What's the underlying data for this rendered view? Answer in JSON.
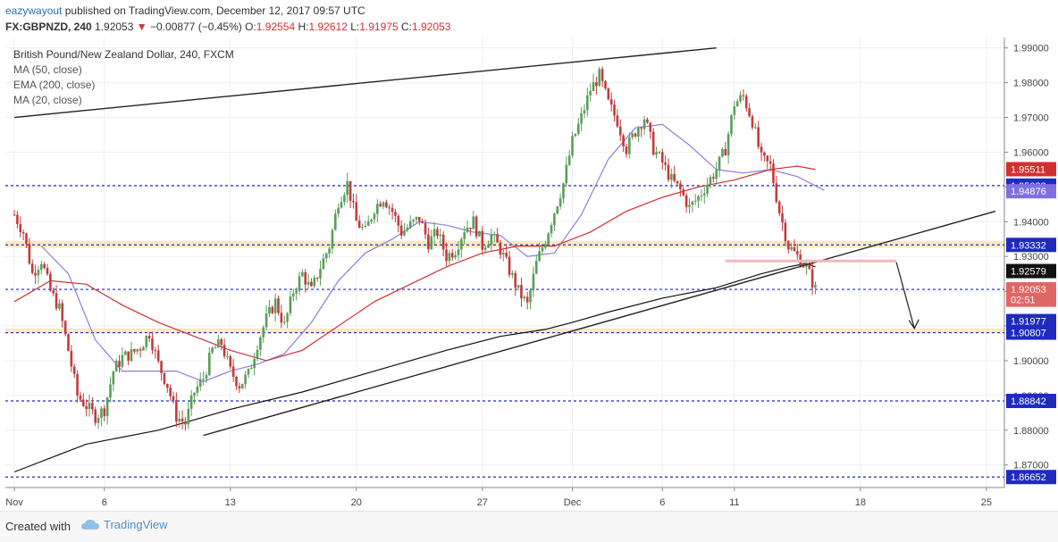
{
  "header": {
    "author": "eazywayout",
    "published": "published on TradingView.com, December 12, 2017 09:57 UTC",
    "symbol": "FX:GBPNZD, 240",
    "last": "1.92053",
    "change": "−0.00877 (−0.45%)",
    "o_label": "O:",
    "o_value": "1.92554",
    "h_label": "H:",
    "h_value": "1.92612",
    "l_label": "L:",
    "l_value": "1.91975",
    "c_label": "C:",
    "c_value": "1.92053"
  },
  "legend": {
    "title": "British Pound/New Zealand Dollar, 240, FXCM",
    "items": [
      "MA (50, close)",
      "EMA (200, close)",
      "MA (20, close)"
    ]
  },
  "footer": {
    "created_with": "Created with",
    "brand": "TradingView"
  },
  "colors": {
    "up": "#5a9e5a",
    "down": "#c23b3b",
    "ma20": "#8b7fe0",
    "ema200": "#d42f2f",
    "ma50": "#111111",
    "level_line": "#1f2bbd",
    "zone": "#f6e3b6",
    "resistance": "#f2b8b8"
  },
  "chart_data": {
    "type": "line",
    "title": "British Pound/New Zealand Dollar, 240, FXCM",
    "x_ticks": [
      "Nov",
      "6",
      "13",
      "20",
      "27",
      "Dec",
      "6",
      "11",
      "18",
      "25"
    ],
    "y_ticks": [
      1.87,
      1.88,
      1.89,
      1.9,
      1.91,
      1.92,
      1.93,
      1.94,
      1.95,
      1.96,
      1.97,
      1.98,
      1.99
    ],
    "y_tick_labels": [
      "1.87000",
      "1.88000",
      "1.89000",
      "1.90000",
      "1.91000",
      "1.92000",
      "1.93000",
      "1.94000",
      "1.95000",
      "1.96000",
      "1.97000",
      "1.98000",
      "1.99000"
    ],
    "ylim": [
      1.8635,
      1.993
    ],
    "x_range_days": [
      -0.5,
      55
    ],
    "price_path": [
      [
        0.0,
        1.942
      ],
      [
        0.5,
        1.937
      ],
      [
        1.0,
        1.925
      ],
      [
        1.5,
        1.929
      ],
      [
        2.0,
        1.92
      ],
      [
        2.5,
        1.915
      ],
      [
        3.0,
        1.903
      ],
      [
        3.5,
        1.89
      ],
      [
        4.0,
        1.887
      ],
      [
        4.5,
        1.884
      ],
      [
        5.0,
        1.886
      ],
      [
        5.5,
        1.897
      ],
      [
        6.0,
        1.901
      ],
      [
        6.5,
        1.902
      ],
      [
        7.0,
        1.904
      ],
      [
        7.5,
        1.908
      ],
      [
        8.0,
        1.899
      ],
      [
        8.5,
        1.893
      ],
      [
        9.0,
        1.884
      ],
      [
        9.5,
        1.882
      ],
      [
        10.0,
        1.891
      ],
      [
        10.5,
        1.895
      ],
      [
        11.0,
        1.903
      ],
      [
        11.5,
        1.905
      ],
      [
        12.0,
        1.897
      ],
      [
        12.5,
        1.893
      ],
      [
        13.0,
        1.896
      ],
      [
        13.5,
        1.905
      ],
      [
        14.0,
        1.912
      ],
      [
        14.5,
        1.917
      ],
      [
        15.0,
        1.91
      ],
      [
        15.5,
        1.92
      ],
      [
        16.0,
        1.925
      ],
      [
        16.5,
        1.92
      ],
      [
        17.0,
        1.927
      ],
      [
        17.5,
        1.933
      ],
      [
        18.0,
        1.946
      ],
      [
        18.5,
        1.951
      ],
      [
        19.0,
        1.94
      ],
      [
        19.5,
        1.937
      ],
      [
        20.0,
        1.944
      ],
      [
        20.5,
        1.947
      ],
      [
        21.0,
        1.943
      ],
      [
        21.5,
        1.937
      ],
      [
        22.0,
        1.939
      ],
      [
        22.5,
        1.941
      ],
      [
        23.0,
        1.934
      ],
      [
        23.5,
        1.937
      ],
      [
        24.0,
        1.93
      ],
      [
        24.5,
        1.932
      ],
      [
        25.0,
        1.938
      ],
      [
        25.5,
        1.94
      ],
      [
        26.0,
        1.933
      ],
      [
        26.5,
        1.936
      ],
      [
        27.0,
        1.932
      ],
      [
        27.5,
        1.926
      ],
      [
        28.0,
        1.92
      ],
      [
        28.5,
        1.916
      ],
      [
        29.0,
        1.928
      ],
      [
        29.5,
        1.935
      ],
      [
        30.0,
        1.943
      ],
      [
        30.5,
        1.951
      ],
      [
        31.0,
        1.963
      ],
      [
        31.5,
        1.97
      ],
      [
        32.0,
        1.978
      ],
      [
        32.5,
        1.982
      ],
      [
        33.0,
        1.974
      ],
      [
        33.5,
        1.969
      ],
      [
        34.0,
        1.961
      ],
      [
        34.5,
        1.966
      ],
      [
        35.0,
        1.97
      ],
      [
        35.5,
        1.961
      ],
      [
        36.0,
        1.957
      ],
      [
        36.5,
        1.952
      ],
      [
        37.0,
        1.949
      ],
      [
        37.5,
        1.944
      ],
      [
        38.0,
        1.947
      ],
      [
        38.5,
        1.951
      ],
      [
        39.0,
        1.955
      ],
      [
        39.5,
        1.961
      ],
      [
        40.0,
        1.974
      ],
      [
        40.5,
        1.976
      ],
      [
        41.0,
        1.969
      ],
      [
        41.5,
        1.958
      ],
      [
        42.0,
        1.956
      ],
      [
        42.5,
        1.943
      ],
      [
        43.0,
        1.933
      ],
      [
        43.5,
        1.93
      ],
      [
        44.0,
        1.927
      ],
      [
        44.5,
        1.9205
      ]
    ],
    "series": [
      {
        "name": "MA (20, close)",
        "points": [
          [
            1.5,
            1.933
          ],
          [
            3.0,
            1.925
          ],
          [
            4.5,
            1.906
          ],
          [
            6.0,
            1.897
          ],
          [
            7.5,
            1.897
          ],
          [
            9.0,
            1.897
          ],
          [
            10.5,
            1.894
          ],
          [
            12.0,
            1.897
          ],
          [
            13.5,
            1.899
          ],
          [
            15.0,
            1.902
          ],
          [
            16.5,
            1.911
          ],
          [
            18.0,
            1.923
          ],
          [
            19.5,
            1.931
          ],
          [
            21.0,
            1.935
          ],
          [
            22.5,
            1.94
          ],
          [
            24.0,
            1.939
          ],
          [
            25.5,
            1.937
          ],
          [
            27.0,
            1.936
          ],
          [
            28.5,
            1.93
          ],
          [
            30.0,
            1.931
          ],
          [
            31.5,
            1.942
          ],
          [
            33.0,
            1.958
          ],
          [
            34.5,
            1.967
          ],
          [
            36.0,
            1.968
          ],
          [
            37.5,
            1.962
          ],
          [
            39.0,
            1.955
          ],
          [
            40.5,
            1.954
          ],
          [
            42.0,
            1.955
          ],
          [
            43.5,
            1.953
          ],
          [
            45.0,
            1.949
          ]
        ]
      },
      {
        "name": "EMA (200, close)",
        "points": [
          [
            0.0,
            1.917
          ],
          [
            2.0,
            1.923
          ],
          [
            4.0,
            1.922
          ],
          [
            6.0,
            1.916
          ],
          [
            8.0,
            1.911
          ],
          [
            10.0,
            1.907
          ],
          [
            12.0,
            1.903
          ],
          [
            14.0,
            1.9
          ],
          [
            16.0,
            1.903
          ],
          [
            18.0,
            1.91
          ],
          [
            20.0,
            1.917
          ],
          [
            22.0,
            1.922
          ],
          [
            24.0,
            1.927
          ],
          [
            26.0,
            1.931
          ],
          [
            28.0,
            1.933
          ],
          [
            30.0,
            1.933
          ],
          [
            32.0,
            1.937
          ],
          [
            34.0,
            1.943
          ],
          [
            36.0,
            1.947
          ],
          [
            38.0,
            1.95
          ],
          [
            40.0,
            1.952
          ],
          [
            42.0,
            1.955
          ],
          [
            43.5,
            1.956
          ],
          [
            44.5,
            1.955
          ]
        ]
      },
      {
        "name": "MA (50, close)",
        "points": [
          [
            0.0,
            1.868
          ],
          [
            4.0,
            1.876
          ],
          [
            8.0,
            1.88
          ],
          [
            12.0,
            1.886
          ],
          [
            16.0,
            1.891
          ],
          [
            20.0,
            1.897
          ],
          [
            24.0,
            1.903
          ],
          [
            27.0,
            1.907
          ],
          [
            29.5,
            1.909
          ],
          [
            31.0,
            1.911
          ],
          [
            33.0,
            1.914
          ],
          [
            36.0,
            1.918
          ],
          [
            39.0,
            1.921
          ],
          [
            41.5,
            1.925
          ],
          [
            43.0,
            1.927
          ],
          [
            44.0,
            1.928
          ],
          [
            44.5,
            1.927
          ]
        ]
      }
    ],
    "horizontal_levels": [
      1.95038,
      1.93332,
      1.92053,
      1.90807,
      1.88842,
      1.86652
    ],
    "zones": [
      [
        1.9325,
        1.9345
      ],
      [
        1.9078,
        1.9093
      ]
    ],
    "trendlines": [
      {
        "from": [
          0.0,
          1.97
        ],
        "to": [
          39.0,
          1.99
        ]
      },
      {
        "from": [
          10.5,
          1.8785
        ],
        "to": [
          54.5,
          1.943
        ]
      }
    ],
    "resistance_segment": {
      "from_day": 39.5,
      "to_day": 49.0,
      "price": 1.9287
    },
    "projection_arrow": {
      "from": [
        49.0,
        1.9283
      ],
      "to": [
        50.0,
        1.9093
      ]
    },
    "price_tags": [
      {
        "value": "1.95511",
        "price": 1.95511,
        "color": "#d42f2f"
      },
      {
        "value": "1.95038",
        "price": 1.95038,
        "color": "#1f2bbd"
      },
      {
        "value": "1.94876",
        "price": 1.94876,
        "color": "#7f6fe0"
      },
      {
        "value": "1.93332",
        "price": 1.93332,
        "color": "#1f2bbd"
      },
      {
        "value": "1.92579",
        "price": 1.92579,
        "color": "#111111"
      },
      {
        "value": "1.92053",
        "price": 1.92053,
        "color": "#e06666"
      },
      {
        "value": "02:51",
        "price": 1.91755,
        "color": "#e06666"
      },
      {
        "value": "1.91977",
        "price": 1.9114,
        "color": "#1f2bbd"
      },
      {
        "value": "1.90807",
        "price": 1.90807,
        "color": "#1f2bbd"
      },
      {
        "value": "1.88842",
        "price": 1.88842,
        "color": "#1f2bbd"
      },
      {
        "value": "1.86652",
        "price": 1.86652,
        "color": "#1f2bbd"
      }
    ]
  }
}
